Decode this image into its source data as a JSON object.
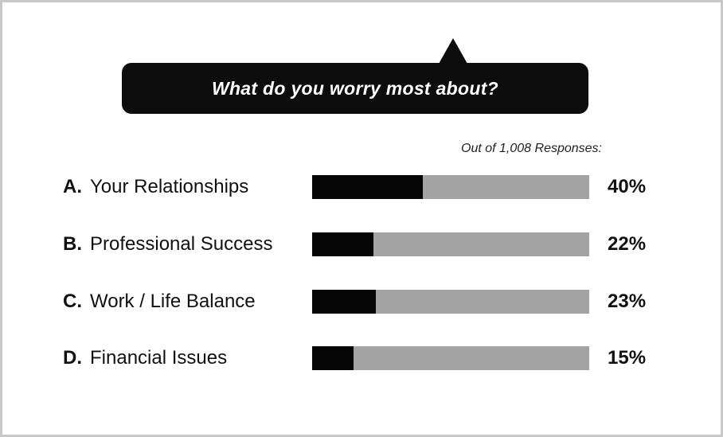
{
  "chart_data": {
    "type": "bar",
    "orientation": "horizontal",
    "title": "What do you worry most about?",
    "subtitle": "Out of 1,008 Responses:",
    "xlim": [
      0,
      100
    ],
    "grid": false,
    "categories": [
      {
        "letter": "A.",
        "label": "Your Relationships"
      },
      {
        "letter": "B.",
        "label": "Professional Success"
      },
      {
        "letter": "C.",
        "label": "Work / Life Balance"
      },
      {
        "letter": "D.",
        "label": "Financial Issues"
      }
    ],
    "values": [
      40,
      22,
      23,
      15
    ],
    "value_labels": [
      "40%",
      "22%",
      "23%",
      "15%"
    ],
    "colors": {
      "bar": "#050505",
      "track": "#a3a3a3",
      "bubble": "#0d0d0d"
    }
  }
}
